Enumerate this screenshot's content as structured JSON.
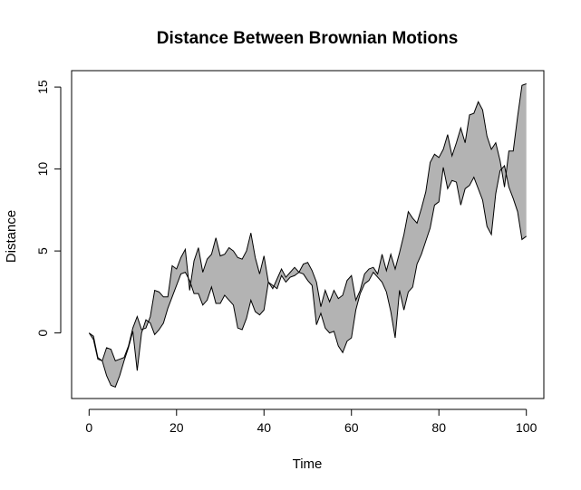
{
  "chart_data": {
    "type": "area",
    "title": "Distance Between Brownian Motions",
    "xlabel": "Time",
    "ylabel": "Distance",
    "xlim": [
      -4,
      104
    ],
    "ylim": [
      -4,
      16
    ],
    "xticks": [
      0,
      20,
      40,
      60,
      80,
      100
    ],
    "yticks": [
      0,
      5,
      10,
      15
    ],
    "grid": false,
    "fill_color": "#b3b3b3",
    "line_color": "#000000",
    "series": [
      {
        "x": [
          0,
          1,
          2,
          3,
          4,
          5,
          6,
          7,
          8,
          9,
          10,
          11,
          12,
          13,
          14,
          15,
          16,
          17,
          18,
          19,
          20,
          21,
          22,
          23,
          24,
          25,
          26,
          27,
          28,
          29,
          30,
          31,
          32,
          33,
          34,
          35,
          36,
          37,
          38,
          39,
          40,
          41,
          42,
          43,
          44,
          45,
          46,
          47,
          48,
          49,
          50,
          51,
          52,
          53,
          54,
          55,
          56,
          57,
          58,
          59,
          60,
          61,
          62,
          63,
          64,
          65,
          66,
          67,
          68,
          69,
          70,
          71,
          72,
          73,
          74,
          75,
          76,
          77,
          78,
          79,
          80,
          81,
          82,
          83,
          84,
          85,
          86,
          87,
          88,
          89,
          90,
          91,
          92,
          93,
          94,
          95,
          96,
          97,
          98,
          99,
          100
        ],
        "values": [
          0,
          -0.4,
          -1.6,
          -1.7,
          -0.9,
          -1.0,
          -1.7,
          -1.6,
          -1.5,
          -0.8,
          0.3,
          1.0,
          0.2,
          0.3,
          1.0,
          2.6,
          2.5,
          2.2,
          2.2,
          4.1,
          3.9,
          4.6,
          5.1,
          2.6,
          4.4,
          5.2,
          3.7,
          4.5,
          4.8,
          5.8,
          4.7,
          4.8,
          5.2,
          5.0,
          4.6,
          4.5,
          5.0,
          6.1,
          4.6,
          3.6,
          4.7,
          3.1,
          2.7,
          3.3,
          3.9,
          3.4,
          3.7,
          4.0,
          3.7,
          4.2,
          4.3,
          3.8,
          3.1,
          1.6,
          2.6,
          1.9,
          2.6,
          2.1,
          2.3,
          3.2,
          3.5,
          2.0,
          2.6,
          3.6,
          3.9,
          4.0,
          3.6,
          4.8,
          3.8,
          4.8,
          3.9,
          4.9,
          6.0,
          7.4,
          7.0,
          6.7,
          7.6,
          8.6,
          10.4,
          10.9,
          10.7,
          11.2,
          12.1,
          10.8,
          11.6,
          12.5,
          11.6,
          13.3,
          13.4,
          14.1,
          13.6,
          12.0,
          11.2,
          11.6,
          10.5,
          8.9,
          11.1,
          11.1,
          13.2,
          15.1,
          15.2
        ]
      },
      {
        "x": [
          0,
          1,
          2,
          3,
          4,
          5,
          6,
          7,
          8,
          9,
          10,
          11,
          12,
          13,
          14,
          15,
          16,
          17,
          18,
          19,
          20,
          21,
          22,
          23,
          24,
          25,
          26,
          27,
          28,
          29,
          30,
          31,
          32,
          33,
          34,
          35,
          36,
          37,
          38,
          39,
          40,
          41,
          42,
          43,
          44,
          45,
          46,
          47,
          48,
          49,
          50,
          51,
          52,
          53,
          54,
          55,
          56,
          57,
          58,
          59,
          60,
          61,
          62,
          63,
          64,
          65,
          66,
          67,
          68,
          69,
          70,
          71,
          72,
          73,
          74,
          75,
          76,
          77,
          78,
          79,
          80,
          81,
          82,
          83,
          84,
          85,
          86,
          87,
          88,
          89,
          90,
          91,
          92,
          93,
          94,
          95,
          96,
          97,
          98,
          99,
          100
        ],
        "values": [
          0,
          -0.2,
          -1.5,
          -1.7,
          -2.6,
          -3.2,
          -3.3,
          -2.6,
          -1.7,
          -0.9,
          0.1,
          -2.3,
          0.0,
          0.8,
          0.6,
          -0.1,
          0.2,
          0.6,
          1.5,
          2.2,
          2.9,
          3.6,
          3.7,
          3.2,
          2.4,
          2.4,
          1.7,
          2.0,
          2.8,
          1.8,
          1.8,
          2.3,
          2.0,
          1.7,
          0.3,
          0.2,
          0.9,
          2.0,
          1.3,
          1.1,
          1.4,
          3.1,
          2.9,
          2.7,
          3.5,
          3.1,
          3.4,
          3.5,
          3.7,
          3.6,
          3.2,
          2.9,
          0.5,
          1.2,
          0.3,
          0.0,
          0.1,
          -0.8,
          -1.2,
          -0.5,
          -0.3,
          1.4,
          2.4,
          3.0,
          3.2,
          3.7,
          3.4,
          3.1,
          2.5,
          1.3,
          -0.3,
          2.6,
          1.4,
          2.5,
          2.8,
          4.2,
          4.8,
          5.6,
          6.4,
          7.8,
          8.0,
          10.1,
          8.8,
          9.3,
          9.2,
          7.8,
          8.8,
          9.0,
          9.5,
          8.8,
          8.1,
          6.5,
          6.0,
          8.5,
          9.9,
          10.2,
          8.9,
          8.2,
          7.4,
          5.7,
          5.9
        ]
      }
    ]
  }
}
